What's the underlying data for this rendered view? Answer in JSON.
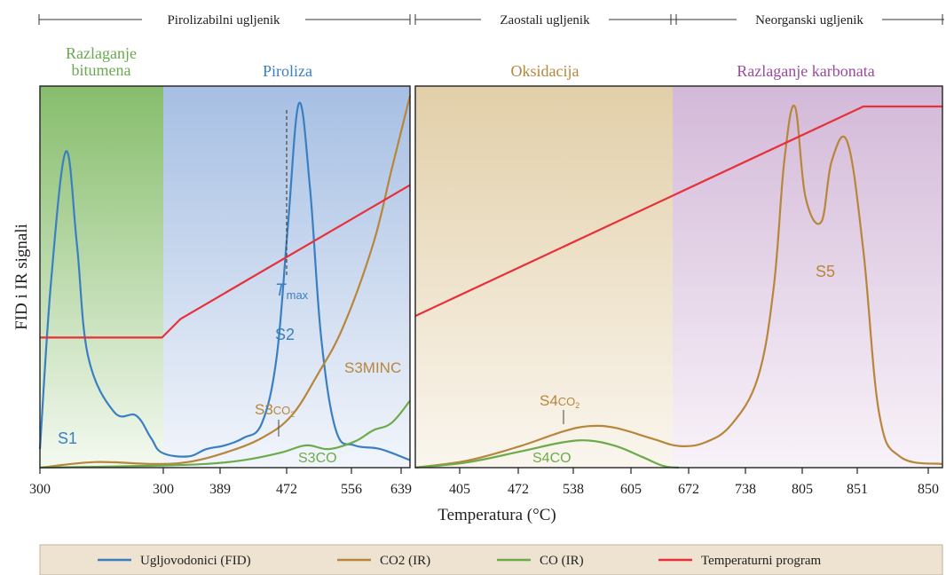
{
  "header": {
    "pyro_label": "Pirolizabilni ugljenik",
    "residual_label": "Zaostali ugljenik",
    "inorganic_label": "Neorganski ugljenik"
  },
  "zones": {
    "bitumen_line1": "Razlaganje",
    "bitumen_line2": "bitumena",
    "pyrolysis": "Piroliza",
    "oxidation": "Oksidacija",
    "carbonate": "Razlaganje karbonata"
  },
  "colors": {
    "hydrocarbons": "#3a7fc1",
    "co2": "#b8863b",
    "co": "#6cab4a",
    "temperature": "#e8303a",
    "zone_bitumen": "#9cc985",
    "zone_pyrolysis": "#b4c9e6",
    "zone_oxidation": "#e6d4b4",
    "zone_carbonate": "#d8c0dc",
    "legend_bg": "#ede3d0"
  },
  "peak_labels": {
    "s1": "S1",
    "s2": "S2",
    "tmax_main": "T",
    "tmax_sub": "max",
    "s3co2_main": "S3",
    "s3co2_sub": "CO",
    "s3co2_subsub": "2",
    "s3minc": "S3MINC",
    "s3co": "S3CO",
    "s4co2_main": "S4",
    "s4co2_sub": "CO",
    "s4co2_subsub": "2",
    "s4co": "S4CO",
    "s5": "S5"
  },
  "legend": {
    "items": [
      {
        "label": "Ugljovodonici (FID)",
        "color": "#3a7fc1"
      },
      {
        "label": "CO2 (IR)",
        "color": "#b8863b"
      },
      {
        "label": "CO (IR)",
        "color": "#6cab4a"
      },
      {
        "label": "Temperaturni program",
        "color": "#e8303a"
      }
    ]
  },
  "chart_data": [
    {
      "type": "line",
      "panel": "pyrolysis",
      "xlabel": "",
      "ylabel": "FID i IR signali",
      "x_tick_labels": [
        "300",
        "300",
        "389",
        "472",
        "556",
        "639"
      ],
      "series": [
        {
          "name": "Ugljovodonici (FID)",
          "points": [
            [
              0,
              0.05
            ],
            [
              0.03,
              0.5
            ],
            [
              0.07,
              0.85
            ],
            [
              0.1,
              0.6
            ],
            [
              0.13,
              0.3
            ],
            [
              0.2,
              0.15
            ],
            [
              0.26,
              0.14
            ],
            [
              0.3,
              0.08
            ],
            [
              0.33,
              0.04
            ],
            [
              0.4,
              0.03
            ],
            [
              0.45,
              0.05
            ],
            [
              0.5,
              0.06
            ],
            [
              0.55,
              0.08
            ],
            [
              0.6,
              0.12
            ],
            [
              0.64,
              0.3
            ],
            [
              0.67,
              0.65
            ],
            [
              0.7,
              0.98
            ],
            [
              0.73,
              0.75
            ],
            [
              0.76,
              0.35
            ],
            [
              0.8,
              0.1
            ],
            [
              0.85,
              0.06
            ],
            [
              0.92,
              0.05
            ],
            [
              1.0,
              0.02
            ]
          ]
        },
        {
          "name": "CO2 (IR)",
          "points": [
            [
              0,
              0.0
            ],
            [
              0.15,
              0.015
            ],
            [
              0.3,
              0.01
            ],
            [
              0.4,
              0.015
            ],
            [
              0.5,
              0.04
            ],
            [
              0.6,
              0.08
            ],
            [
              0.68,
              0.14
            ],
            [
              0.75,
              0.25
            ],
            [
              0.82,
              0.38
            ],
            [
              0.9,
              0.6
            ],
            [
              0.95,
              0.8
            ],
            [
              1.0,
              1.0
            ]
          ]
        },
        {
          "name": "CO (IR)",
          "points": [
            [
              0,
              0.0
            ],
            [
              0.3,
              0.005
            ],
            [
              0.45,
              0.01
            ],
            [
              0.55,
              0.02
            ],
            [
              0.65,
              0.04
            ],
            [
              0.72,
              0.06
            ],
            [
              0.78,
              0.05
            ],
            [
              0.85,
              0.07
            ],
            [
              0.9,
              0.1
            ],
            [
              0.95,
              0.12
            ],
            [
              1.0,
              0.18
            ]
          ]
        },
        {
          "name": "Temperaturni program",
          "points": [
            [
              0,
              0.35
            ],
            [
              0.33,
              0.35
            ],
            [
              0.38,
              0.4
            ],
            [
              1.0,
              0.76
            ]
          ]
        }
      ]
    },
    {
      "type": "line",
      "panel": "oxidation",
      "xlabel": "Temperatura (°C)",
      "ylabel": "",
      "x_tick_labels": [
        "405",
        "472",
        "538",
        "605",
        "672",
        "738",
        "805",
        "851",
        "850"
      ],
      "series": [
        {
          "name": "CO2 (IR)",
          "points": [
            [
              0,
              0.0
            ],
            [
              0.1,
              0.02
            ],
            [
              0.2,
              0.06
            ],
            [
              0.28,
              0.1
            ],
            [
              0.33,
              0.115
            ],
            [
              0.38,
              0.11
            ],
            [
              0.45,
              0.08
            ],
            [
              0.5,
              0.06
            ],
            [
              0.55,
              0.07
            ],
            [
              0.6,
              0.12
            ],
            [
              0.65,
              0.25
            ],
            [
              0.68,
              0.5
            ],
            [
              0.7,
              0.85
            ],
            [
              0.72,
              1.0
            ],
            [
              0.74,
              0.75
            ],
            [
              0.77,
              0.68
            ],
            [
              0.79,
              0.85
            ],
            [
              0.82,
              0.9
            ],
            [
              0.85,
              0.6
            ],
            [
              0.88,
              0.15
            ],
            [
              0.92,
              0.03
            ],
            [
              1.0,
              0.01
            ]
          ]
        },
        {
          "name": "CO (IR)",
          "points": [
            [
              0,
              0.0
            ],
            [
              0.1,
              0.015
            ],
            [
              0.2,
              0.045
            ],
            [
              0.28,
              0.07
            ],
            [
              0.33,
              0.075
            ],
            [
              0.38,
              0.06
            ],
            [
              0.43,
              0.03
            ],
            [
              0.47,
              0.005
            ],
            [
              0.5,
              0.0
            ]
          ]
        },
        {
          "name": "Temperaturni program",
          "points": [
            [
              0,
              0.42
            ],
            [
              0.85,
              1.0
            ],
            [
              1.0,
              1.0
            ]
          ]
        }
      ]
    }
  ]
}
